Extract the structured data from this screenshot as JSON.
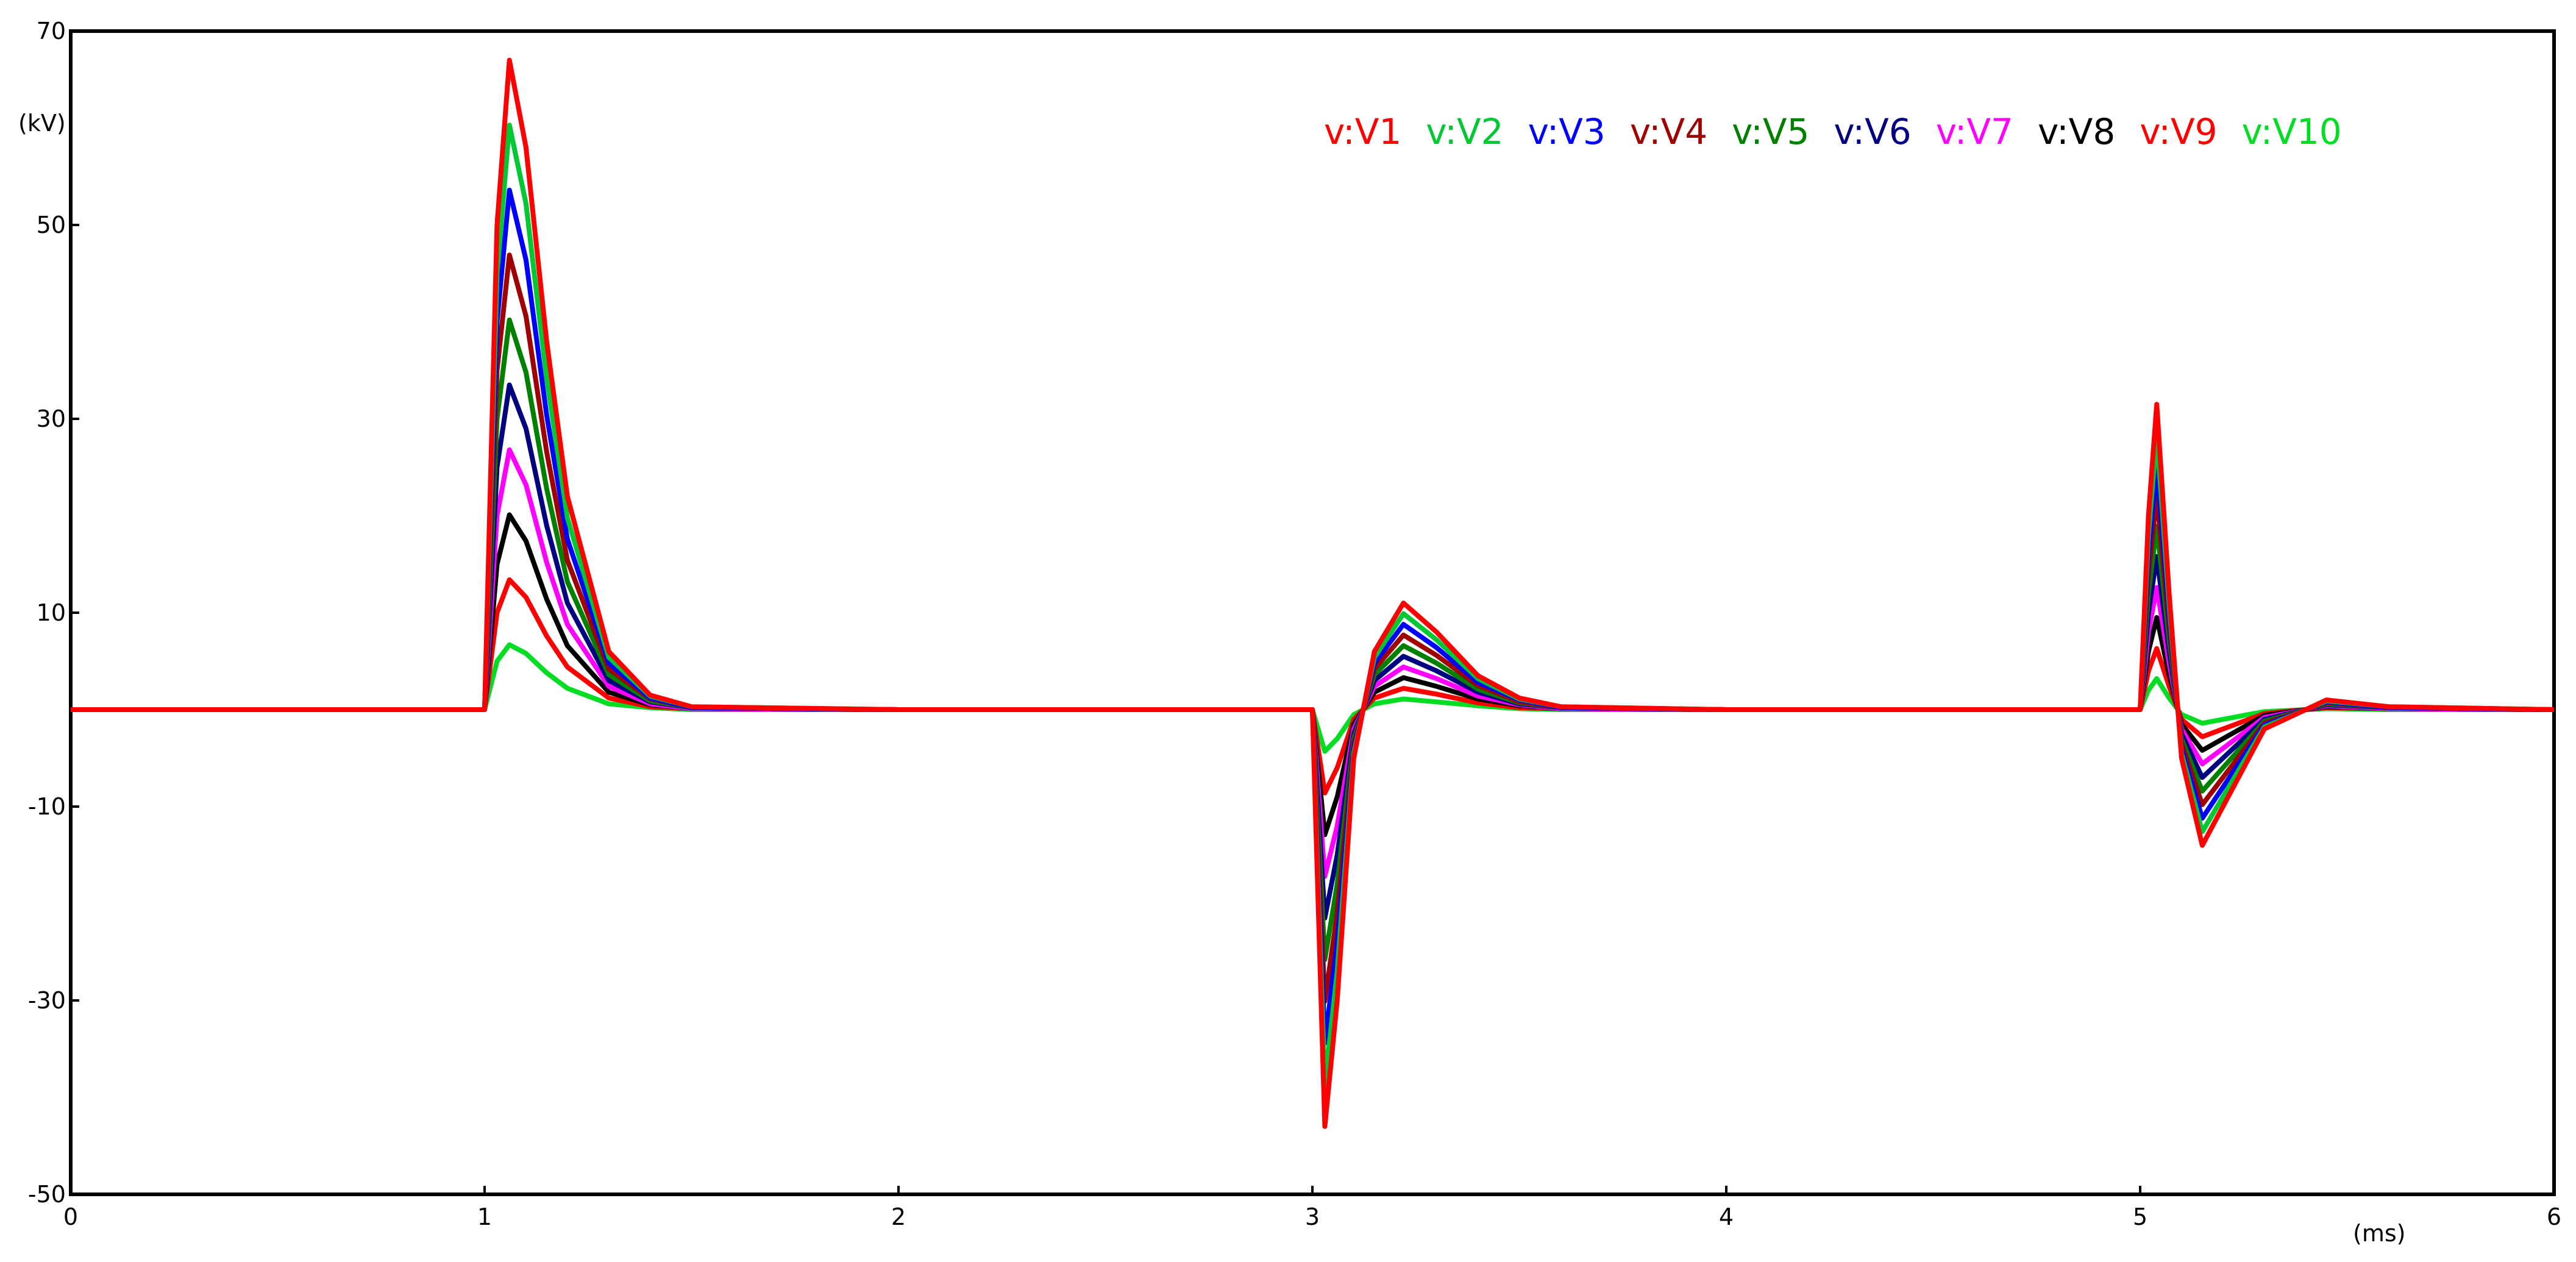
{
  "chart_data": {
    "type": "line",
    "y_label": "(kV)",
    "x_label": "(ms)",
    "xlim": [
      0,
      6
    ],
    "ylim": [
      -50,
      70
    ],
    "xticks": [
      0,
      1,
      2,
      3,
      4,
      5,
      6
    ],
    "yticks": [
      -50,
      -30,
      -10,
      10,
      30,
      50,
      70
    ],
    "legend": "top-right",
    "x": [
      0,
      0.5,
      1,
      1.03,
      1.06,
      1.1,
      1.15,
      1.2,
      1.3,
      1.4,
      1.5,
      2,
      3,
      3.03,
      3.06,
      3.1,
      3.15,
      3.22,
      3.3,
      3.4,
      3.5,
      3.6,
      4,
      5,
      5.02,
      5.04,
      5.07,
      5.1,
      5.15,
      5.2,
      5.3,
      5.45,
      5.6,
      6
    ],
    "series": [
      {
        "name": "v:V1",
        "color": "#ff0000",
        "values": [
          0,
          0,
          0,
          50,
          67,
          58,
          38,
          22,
          6,
          1.5,
          0.3,
          0,
          0,
          -43,
          -30,
          -5,
          6,
          11,
          8,
          3.5,
          1.2,
          0.3,
          0,
          0,
          20,
          31.5,
          12,
          -5,
          -14,
          -10,
          -2,
          1,
          0.3,
          0
        ]
      },
      {
        "name": "v:V2",
        "color": "#00c832",
        "values": [
          0,
          0,
          0,
          45,
          60.3,
          52.2,
          34.2,
          19.8,
          5.4,
          1.4,
          0.3,
          0,
          0,
          -38.7,
          -27,
          -4.5,
          5.4,
          9.9,
          7.2,
          3.2,
          1.1,
          0.3,
          0,
          0,
          18,
          28.4,
          10.8,
          -4.5,
          -12.6,
          -9,
          -1.8,
          0.9,
          0.3,
          0
        ]
      },
      {
        "name": "v:V3",
        "color": "#0000ff",
        "values": [
          0,
          0,
          0,
          40,
          53.6,
          46.4,
          30.4,
          17.6,
          4.8,
          1.2,
          0.2,
          0,
          0,
          -34.4,
          -24,
          -4,
          4.8,
          8.8,
          6.4,
          2.8,
          1,
          0.2,
          0,
          0,
          16,
          25.2,
          9.6,
          -4,
          -11.2,
          -8,
          -1.6,
          0.8,
          0.2,
          0
        ]
      },
      {
        "name": "v:V4",
        "color": "#a00000",
        "values": [
          0,
          0,
          0,
          35,
          46.9,
          40.6,
          26.6,
          15.4,
          4.2,
          1.1,
          0.2,
          0,
          0,
          -30.1,
          -21,
          -3.5,
          4.2,
          7.7,
          5.6,
          2.5,
          0.8,
          0.2,
          0,
          0,
          14,
          22.1,
          8.4,
          -3.5,
          -9.8,
          -7,
          -1.4,
          0.7,
          0.2,
          0
        ]
      },
      {
        "name": "v:V5",
        "color": "#008000",
        "values": [
          0,
          0,
          0,
          30,
          40.2,
          34.8,
          22.8,
          13.2,
          3.6,
          0.9,
          0.2,
          0,
          0,
          -25.8,
          -18,
          -3,
          3.6,
          6.6,
          4.8,
          2.1,
          0.7,
          0.2,
          0,
          0,
          12,
          18.9,
          7.2,
          -3,
          -8.4,
          -6,
          -1.2,
          0.6,
          0.2,
          0
        ]
      },
      {
        "name": "v:V6",
        "color": "#000080",
        "values": [
          0,
          0,
          0,
          25,
          33.5,
          29,
          19,
          11,
          3,
          0.8,
          0.2,
          0,
          0,
          -21.5,
          -15,
          -2.5,
          3,
          5.5,
          4,
          1.8,
          0.6,
          0.2,
          0,
          0,
          10,
          15.8,
          6,
          -2.5,
          -7,
          -5,
          -1,
          0.5,
          0.2,
          0
        ]
      },
      {
        "name": "v:V7",
        "color": "#ff00ff",
        "values": [
          0,
          0,
          0,
          20,
          26.8,
          23.2,
          15.2,
          8.8,
          2.4,
          0.6,
          0.1,
          0,
          0,
          -17.2,
          -12,
          -2,
          2.4,
          4.4,
          3.2,
          1.4,
          0.5,
          0.1,
          0,
          0,
          8,
          12.6,
          4.8,
          -2,
          -5.6,
          -4,
          -0.8,
          0.4,
          0.1,
          0
        ]
      },
      {
        "name": "v:V8",
        "color": "#000000",
        "values": [
          0,
          0,
          0,
          15,
          20.1,
          17.4,
          11.4,
          6.6,
          1.8,
          0.5,
          0.1,
          0,
          0,
          -12.9,
          -9,
          -1.5,
          1.8,
          3.3,
          2.4,
          1.1,
          0.4,
          0.1,
          0,
          0,
          6,
          9.5,
          3.6,
          -1.5,
          -4.2,
          -3,
          -0.6,
          0.3,
          0.1,
          0
        ]
      },
      {
        "name": "v:V9",
        "color": "#ff0000",
        "values": [
          0,
          0,
          0,
          10,
          13.4,
          11.6,
          7.6,
          4.4,
          1.2,
          0.3,
          0.1,
          0,
          0,
          -8.6,
          -6,
          -1,
          1.2,
          2.2,
          1.6,
          0.7,
          0.2,
          0.1,
          0,
          0,
          4,
          6.3,
          2.4,
          -1,
          -2.8,
          -2,
          -0.4,
          0.2,
          0.1,
          0
        ]
      },
      {
        "name": "v:V10",
        "color": "#00dd22",
        "values": [
          0,
          0,
          0,
          5,
          6.7,
          5.8,
          3.8,
          2.2,
          0.6,
          0.2,
          0,
          0,
          0,
          -4.3,
          -3,
          -0.5,
          0.6,
          1.1,
          0.8,
          0.4,
          0.1,
          0,
          0,
          0,
          2,
          3.2,
          1.2,
          -0.5,
          -1.4,
          -1,
          -0.2,
          0.1,
          0,
          0
        ]
      }
    ]
  }
}
